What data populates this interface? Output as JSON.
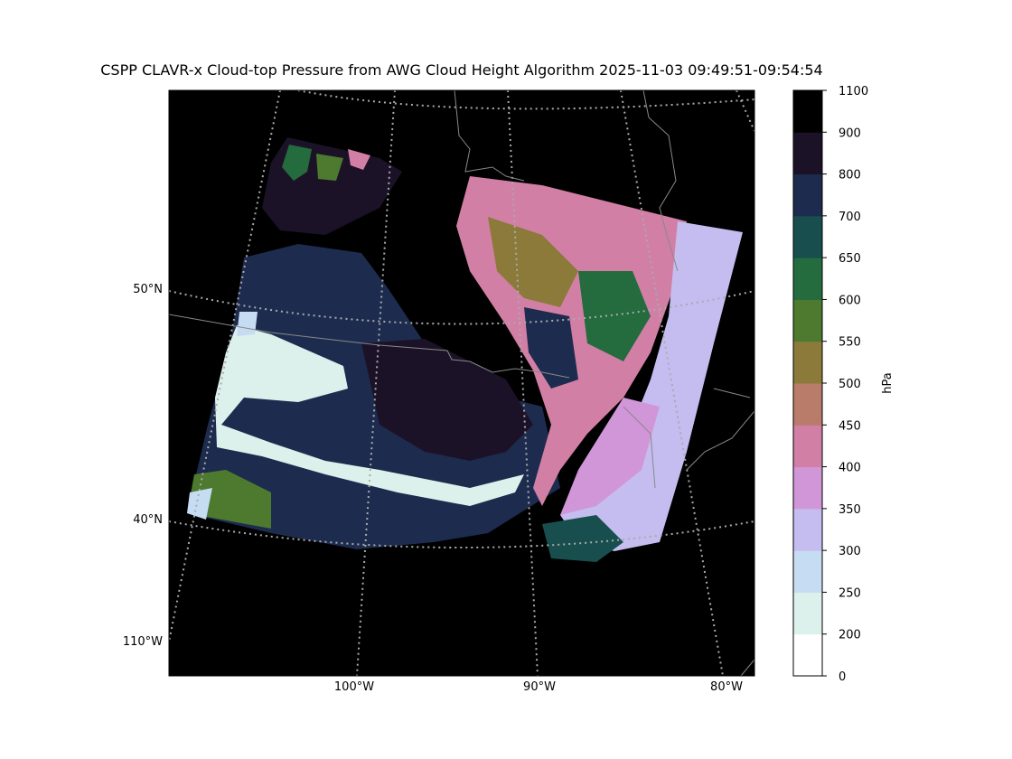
{
  "title": "CSPP CLAVR-x Cloud-top Pressure from AWG Cloud Height Algorithm 2025-11-03 09:49:51-09:54:54",
  "map": {
    "lat_labels": [
      "50°N",
      "40°N"
    ],
    "lon_labels": [
      "110°W",
      "100°W",
      "90°W",
      "80°W"
    ],
    "grid_color": "#aaaaaa",
    "coast_color": "#888888",
    "background_color": "#000000"
  },
  "colorbar": {
    "label": "hPa",
    "ticks": [
      "1100",
      "900",
      "800",
      "700",
      "650",
      "600",
      "550",
      "500",
      "450",
      "400",
      "350",
      "300",
      "250",
      "200",
      "0"
    ],
    "bins": [
      {
        "range": "0-200",
        "color": "#ffffff"
      },
      {
        "range": "200-250",
        "color": "#ddf1ec"
      },
      {
        "range": "250-300",
        "color": "#c6dcf2"
      },
      {
        "range": "300-350",
        "color": "#c5bdf0"
      },
      {
        "range": "350-400",
        "color": "#d196d8"
      },
      {
        "range": "400-450",
        "color": "#d27fa6"
      },
      {
        "range": "450-500",
        "color": "#b97c6b"
      },
      {
        "range": "500-550",
        "color": "#8b7a3a"
      },
      {
        "range": "550-600",
        "color": "#4d7a2f"
      },
      {
        "range": "600-650",
        "color": "#246b3e"
      },
      {
        "range": "650-700",
        "color": "#184f4e"
      },
      {
        "range": "700-800",
        "color": "#1d2c4e"
      },
      {
        "range": "800-900",
        "color": "#1c1228"
      },
      {
        "range": "900-1100",
        "color": "#000000"
      }
    ]
  }
}
